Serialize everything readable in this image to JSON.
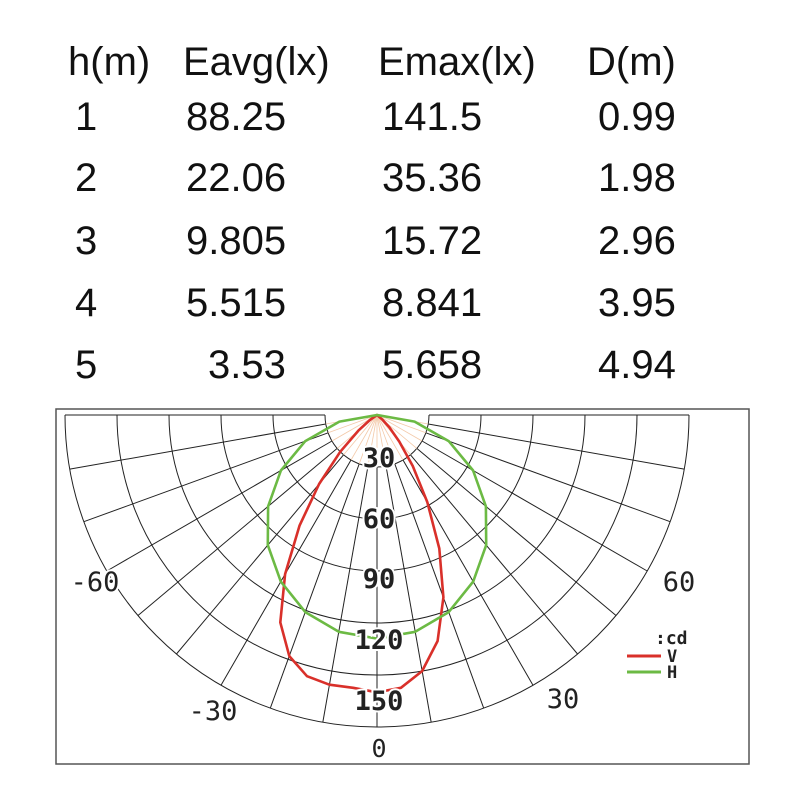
{
  "table": {
    "headers": [
      "h(m)",
      "Eavg(lx)",
      "Emax(lx)",
      "D(m)"
    ],
    "rows": [
      [
        "1",
        "88.25",
        "141.5",
        "0.99"
      ],
      [
        "2",
        "22.06",
        "35.36",
        "1.98"
      ],
      [
        "3",
        "9.805",
        "15.72",
        "2.96"
      ],
      [
        "4",
        "5.515",
        "8.841",
        "3.95"
      ],
      [
        "5",
        "3.53",
        "5.658",
        "4.94"
      ]
    ]
  },
  "chart_data": {
    "type": "polar",
    "radial_unit": ":cd",
    "radial_ticks": [
      "30",
      "60",
      "90",
      "120",
      "150"
    ],
    "radial_zero": "0",
    "angle_labels": [
      "-60",
      "60",
      "-30",
      "30"
    ],
    "series": [
      {
        "name": "V",
        "color": "#d9302a",
        "points": [
          {
            "angle": 0,
            "cd": 160
          },
          {
            "angle": 5,
            "cd": 158
          },
          {
            "angle": 10,
            "cd": 150
          },
          {
            "angle": 15,
            "cd": 135
          },
          {
            "angle": 20,
            "cd": 112
          },
          {
            "angle": 25,
            "cd": 85
          },
          {
            "angle": 30,
            "cd": 58
          },
          {
            "angle": 35,
            "cd": 36
          },
          {
            "angle": 40,
            "cd": 20
          },
          {
            "angle": 45,
            "cd": 10
          },
          {
            "angle": 50,
            "cd": 4
          },
          {
            "angle": 60,
            "cd": 0
          },
          {
            "angle": -5,
            "cd": 158
          },
          {
            "angle": -10,
            "cd": 158
          },
          {
            "angle": -15,
            "cd": 156
          },
          {
            "angle": -20,
            "cd": 148
          },
          {
            "angle": -25,
            "cd": 132
          },
          {
            "angle": -30,
            "cd": 106
          },
          {
            "angle": -35,
            "cd": 78
          },
          {
            "angle": -40,
            "cd": 52
          },
          {
            "angle": -45,
            "cd": 30
          },
          {
            "angle": -50,
            "cd": 14
          },
          {
            "angle": -55,
            "cd": 5
          },
          {
            "angle": -60,
            "cd": 0
          }
        ]
      },
      {
        "name": "H",
        "color": "#6cba44",
        "points": [
          {
            "angle": 0,
            "cd": 129
          },
          {
            "angle": 10,
            "cd": 127
          },
          {
            "angle": 20,
            "cd": 121
          },
          {
            "angle": 30,
            "cd": 111
          },
          {
            "angle": 40,
            "cd": 98
          },
          {
            "angle": 50,
            "cd": 82
          },
          {
            "angle": 60,
            "cd": 64
          },
          {
            "angle": 70,
            "cd": 44
          },
          {
            "angle": 80,
            "cd": 22
          },
          {
            "angle": 90,
            "cd": 0
          },
          {
            "angle": -10,
            "cd": 127
          },
          {
            "angle": -20,
            "cd": 121
          },
          {
            "angle": -30,
            "cd": 111
          },
          {
            "angle": -40,
            "cd": 98
          },
          {
            "angle": -50,
            "cd": 82
          },
          {
            "angle": -60,
            "cd": 64
          },
          {
            "angle": -70,
            "cd": 44
          },
          {
            "angle": -80,
            "cd": 22
          },
          {
            "angle": -90,
            "cd": 0
          }
        ]
      }
    ],
    "grid": true,
    "legend_position": "right"
  }
}
